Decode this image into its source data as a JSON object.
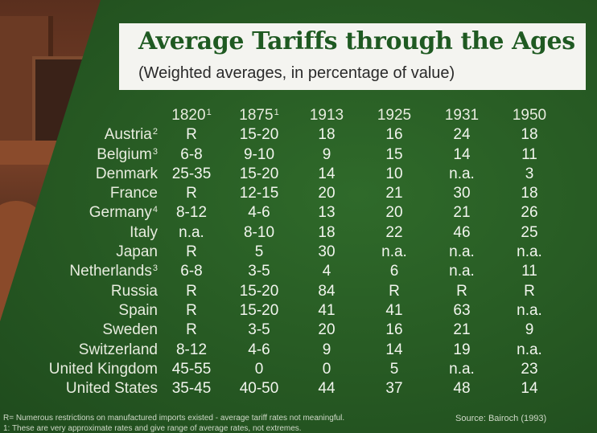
{
  "title": "Average Tariffs through the Ages",
  "subtitle": "(Weighted averages, in percentage of value)",
  "years": [
    {
      "label": "1820",
      "note": "1"
    },
    {
      "label": "1875",
      "note": "1"
    },
    {
      "label": "1913",
      "note": ""
    },
    {
      "label": "1925",
      "note": ""
    },
    {
      "label": "1931",
      "note": ""
    },
    {
      "label": "1950",
      "note": ""
    }
  ],
  "rows": [
    {
      "country": "Austria",
      "note": "2",
      "values": [
        "R",
        "15-20",
        "18",
        "16",
        "24",
        "18"
      ]
    },
    {
      "country": "Belgium",
      "note": "3",
      "values": [
        "6-8",
        "9-10",
        "9",
        "15",
        "14",
        "11"
      ]
    },
    {
      "country": "Denmark",
      "note": "",
      "values": [
        "25-35",
        "15-20",
        "14",
        "10",
        "n.a.",
        "3"
      ]
    },
    {
      "country": "France",
      "note": "",
      "values": [
        "R",
        "12-15",
        "20",
        "21",
        "30",
        "18"
      ]
    },
    {
      "country": "Germany",
      "note": "4",
      "values": [
        "8-12",
        "4-6",
        "13",
        "20",
        "21",
        "26"
      ]
    },
    {
      "country": "Italy",
      "note": "",
      "values": [
        "n.a.",
        "8-10",
        "18",
        "22",
        "46",
        "25"
      ]
    },
    {
      "country": "Japan",
      "note": "",
      "values": [
        "R",
        "5",
        "30",
        "n.a.",
        "n.a.",
        "n.a."
      ]
    },
    {
      "country": "Netherlands",
      "note": "3",
      "values": [
        "6-8",
        "3-5",
        "4",
        "6",
        "n.a.",
        "11"
      ]
    },
    {
      "country": "Russia",
      "note": "",
      "values": [
        "R",
        "15-20",
        "84",
        "R",
        "R",
        "R"
      ]
    },
    {
      "country": "Spain",
      "note": "",
      "values": [
        "R",
        "15-20",
        "41",
        "41",
        "63",
        "n.a."
      ]
    },
    {
      "country": "Sweden",
      "note": "",
      "values": [
        "R",
        "3-5",
        "20",
        "16",
        "21",
        "9"
      ]
    },
    {
      "country": "Switzerland",
      "note": "",
      "values": [
        "8-12",
        "4-6",
        "9",
        "14",
        "19",
        "n.a."
      ]
    },
    {
      "country": "United Kingdom",
      "note": "",
      "values": [
        "45-55",
        "0",
        "0",
        "5",
        "n.a.",
        "23"
      ]
    },
    {
      "country": "United States",
      "note": "",
      "values": [
        "35-45",
        "40-50",
        "44",
        "37",
        "48",
        "14"
      ]
    }
  ],
  "footnote_r": "R= Numerous restrictions on manufactured imports existed - average tariff rates not meaningful.",
  "footnote_1": "1: These are very approximate rates and give range of average rates, not extremes.",
  "source": "Source: Bairoch (1993)",
  "colors": {
    "board": "#285c24",
    "title": "#1f5a22",
    "text": "#f2f5ee"
  }
}
